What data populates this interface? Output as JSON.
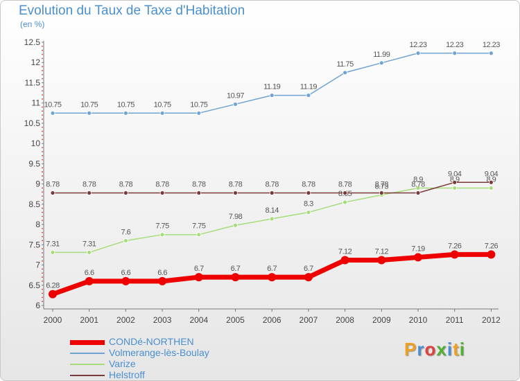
{
  "title": "Evolution du Taux de Taxe d'Habitation",
  "unit_label": "(en %)",
  "brand": {
    "letters": [
      "P",
      "r",
      "o",
      "x",
      "i",
      "t",
      "i"
    ],
    "colors": [
      "#f0a020",
      "#4a8fd0",
      "#e04040",
      "#50b030",
      "#4a8fd0",
      "#f0a020",
      "#50b030"
    ]
  },
  "chart_data": {
    "type": "line",
    "title": "Evolution du Taux de Taxe d'Habitation",
    "ylabel": "(en %)",
    "xlabel": "",
    "x": [
      "2000",
      "2001",
      "2002",
      "2003",
      "2004",
      "2005",
      "2006",
      "2007",
      "2008",
      "2009",
      "2010",
      "2011",
      "2012"
    ],
    "ylim": [
      6,
      12.5
    ],
    "yticks": [
      "6",
      "6.5",
      "7",
      "7.5",
      "8",
      "8.5",
      "9",
      "9.5",
      "10",
      "10.5",
      "11",
      "11.5",
      "12",
      "12.5"
    ],
    "grid": false,
    "legend": "bottom-left",
    "series": [
      {
        "name": "CONDé-NORTHEN",
        "color": "#ee0000",
        "values": [
          6.28,
          6.6,
          6.6,
          6.6,
          6.7,
          6.7,
          6.7,
          6.7,
          7.12,
          7.12,
          7.19,
          7.26,
          7.26
        ],
        "labels": [
          "6.28",
          "6.6",
          "6.6",
          "6.6",
          "6.7",
          "6.7",
          "6.7",
          "6.7",
          "7.12",
          "7.12",
          "7.19",
          "7.26",
          "7.26"
        ]
      },
      {
        "name": "Volmerange-lès-Boulay",
        "color": "#6fa3d3",
        "values": [
          10.75,
          10.75,
          10.75,
          10.75,
          10.75,
          10.97,
          11.19,
          11.19,
          11.75,
          11.99,
          12.23,
          12.23,
          12.23
        ],
        "labels": [
          "10.75",
          "10.75",
          "10.75",
          "10.75",
          "10.75",
          "10.97",
          "11.19",
          "11.19",
          "11.75",
          "11.99",
          "12.23",
          "12.23",
          "12.23"
        ]
      },
      {
        "name": "Varize",
        "color": "#a6dc7a",
        "values": [
          7.31,
          7.31,
          7.6,
          7.75,
          7.75,
          7.98,
          8.14,
          8.3,
          8.55,
          8.73,
          8.9,
          8.9,
          8.9
        ],
        "labels": [
          "7.31",
          "7.31",
          "7.6",
          "7.75",
          "7.75",
          "7.98",
          "8.14",
          "8.3",
          "8.55",
          "8.73",
          "8.9",
          "8.9",
          "8.9"
        ]
      },
      {
        "name": "Helstroff",
        "color": "#7a3a3a",
        "values": [
          8.78,
          8.78,
          8.78,
          8.78,
          8.78,
          8.78,
          8.78,
          8.78,
          8.78,
          8.78,
          8.78,
          9.04,
          9.04
        ],
        "labels": [
          "8.78",
          "8.78",
          "8.78",
          "8.78",
          "8.78",
          "8.78",
          "8.78",
          "8.78",
          "8.78",
          "8.78",
          "8.78",
          "9.04",
          "9.04"
        ]
      }
    ]
  }
}
